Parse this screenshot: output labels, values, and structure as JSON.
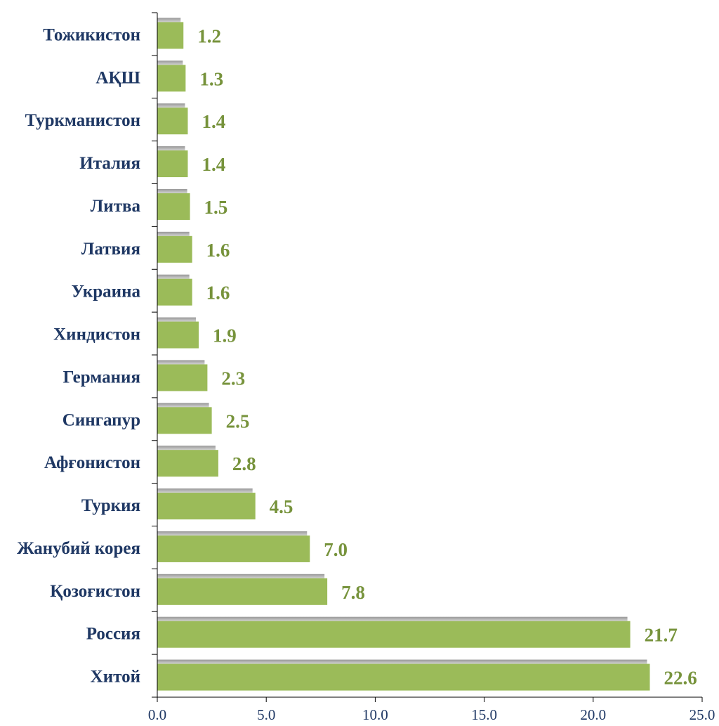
{
  "chart_data": {
    "type": "bar",
    "orientation": "horizontal",
    "title": "",
    "xlabel": "",
    "ylabel": "",
    "categories": [
      "Тожикистон",
      "АҚШ",
      "Туркманистон",
      "Италия",
      "Литва",
      "Латвия",
      "Украина",
      "Хиндистон",
      "Германия",
      "Сингапур",
      "Афғонистон",
      "Туркия",
      "Жанубий корея",
      "Қозоғистон",
      "Россия",
      "Хитой"
    ],
    "values": [
      1.2,
      1.3,
      1.4,
      1.4,
      1.5,
      1.6,
      1.6,
      1.9,
      2.3,
      2.5,
      2.8,
      4.5,
      7.0,
      7.8,
      21.7,
      22.6
    ],
    "value_labels": [
      "1.2",
      "1.3",
      "1.4",
      "1.4",
      "1.5",
      "1.6",
      "1.6",
      "1.9",
      "2.3",
      "2.5",
      "2.8",
      "4.5",
      "7.0",
      "7.8",
      "21.7",
      "22.6"
    ],
    "xlim": [
      0,
      25
    ],
    "xticks": [
      0,
      5,
      10,
      15,
      20,
      25
    ],
    "xtick_labels": [
      "0.0",
      "5.0",
      "10.0",
      "15.0",
      "20.0",
      "25.0"
    ],
    "grid": false,
    "legend": "none",
    "colors": {
      "bar": "#9bbb59",
      "bar_shadow": "#8c8c8c",
      "value_label": "#77933c",
      "category_label": "#1f3864",
      "tick_label": "#1f3864",
      "axis": "#000000"
    }
  }
}
